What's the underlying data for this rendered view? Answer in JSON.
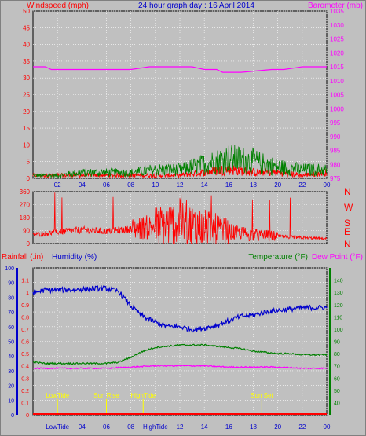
{
  "header": {
    "left_label": "Windspeed (mph)",
    "title": "24 hour graph day : 16 April 2014",
    "right_label": "Barometer (mb)"
  },
  "colors": {
    "bg": "#c0c0c0",
    "plot_bg": "#c0c0c0",
    "wind": "#ff0000",
    "gust": "#008000",
    "baro": "#ff00ff",
    "dir": "#ff0000",
    "rain": "#ff0000",
    "humidity": "#0000cc",
    "temp": "#008000",
    "dew": "#ff00ff",
    "annot": "#ffff00",
    "grid": "#ffffff"
  },
  "panel2": {
    "compass": [
      "N",
      "W",
      "S",
      "E",
      "N"
    ]
  },
  "panel3": {
    "rain_label": "Rainfall (.in)",
    "humidity_label": "Humidity (%)",
    "temp_label": "Temperature (°F)",
    "dew_label": "Dew Point (°F)"
  },
  "chart_data": [
    {
      "type": "line",
      "id": "wind-baro",
      "x_ticks": [
        "02",
        "04",
        "06",
        "08",
        "10",
        "12",
        "14",
        "16",
        "18",
        "20",
        "22",
        "00"
      ],
      "y_left": {
        "label": "Windspeed (mph)",
        "lim": [
          0,
          50
        ],
        "ticks": [
          0,
          5,
          10,
          15,
          20,
          25,
          30,
          35,
          40,
          45,
          50
        ]
      },
      "y_right": {
        "label": "Barometer (mb)",
        "lim": [
          975,
          1035
        ],
        "ticks": [
          975,
          980,
          985,
          990,
          995,
          1000,
          1005,
          1010,
          1015,
          1020,
          1025,
          1030,
          1035
        ]
      },
      "series": [
        {
          "name": "Windspeed",
          "axis": "left",
          "x_hours": [
            0,
            2,
            4,
            6,
            8,
            10,
            12,
            14,
            16,
            18,
            20,
            22,
            24
          ],
          "values": [
            1,
            1,
            1,
            1,
            1,
            1,
            1,
            2,
            3,
            2,
            2,
            1,
            2
          ]
        },
        {
          "name": "Gust",
          "axis": "left",
          "x_hours": [
            0,
            2,
            4,
            6,
            8,
            10,
            12,
            14,
            16,
            18,
            20,
            22,
            24
          ],
          "values": [
            1,
            1,
            2,
            2,
            2,
            3,
            3,
            5,
            7,
            6,
            4,
            3,
            3
          ]
        },
        {
          "name": "Barometer",
          "axis": "right",
          "x_hours": [
            0,
            1,
            1.5,
            8,
            9.5,
            13,
            14,
            15,
            15.5,
            17,
            19.5,
            20.5,
            22,
            23,
            24
          ],
          "values": [
            1015,
            1015,
            1014,
            1014,
            1015,
            1015,
            1014,
            1014,
            1013,
            1013,
            1014,
            1014,
            1015,
            1015,
            1015
          ]
        }
      ]
    },
    {
      "type": "line",
      "id": "wind-direction",
      "y_left": {
        "lim": [
          0,
          360
        ],
        "ticks": [
          0,
          90,
          180,
          270,
          360
        ]
      },
      "series": [
        {
          "name": "Wind direction",
          "x_hours": [
            0,
            2,
            4,
            6,
            8,
            10,
            12,
            14,
            16,
            18,
            20,
            22,
            24
          ],
          "values": [
            60,
            80,
            95,
            85,
            100,
            120,
            140,
            110,
            80,
            60,
            50,
            40,
            35
          ]
        }
      ]
    },
    {
      "type": "line",
      "id": "rain-hum-temp",
      "x_ticks": [
        "LowTide",
        "04",
        "06",
        "08",
        "HighTide",
        "12",
        "14",
        "16",
        "18",
        "20",
        "22",
        "00"
      ],
      "y_rain": {
        "label": "Rainfall (.in)",
        "lim": [
          0,
          1.2
        ],
        "ticks": [
          0,
          0.1,
          0.2,
          0.3,
          0.4,
          0.5,
          0.6,
          0.7,
          0.8,
          0.9,
          1,
          1.1
        ]
      },
      "y_humidity": {
        "label": "Humidity (%)",
        "lim": [
          0,
          100
        ],
        "ticks": [
          0,
          10,
          20,
          30,
          40,
          50,
          60,
          70,
          80,
          90,
          100
        ]
      },
      "y_temp": {
        "label": "Temperature (°F)",
        "lim": [
          30,
          150
        ],
        "ticks": [
          40,
          50,
          60,
          70,
          80,
          90,
          100,
          110,
          120,
          130,
          140
        ]
      },
      "annotations": [
        {
          "label": "LowTide",
          "hour": 2
        },
        {
          "label": "Sun Rise",
          "hour": 6
        },
        {
          "label": "HighTide",
          "hour": 9
        },
        {
          "label": "Sun Set",
          "hour": 18.7
        }
      ],
      "series": [
        {
          "name": "Rainfall",
          "axis": "rain",
          "x_hours": [
            0,
            24
          ],
          "values": [
            0,
            0
          ]
        },
        {
          "name": "Humidity",
          "axis": "humidity",
          "x_hours": [
            0,
            1,
            3,
            5,
            6,
            7,
            8,
            9,
            10,
            11,
            12,
            13,
            14,
            15,
            16,
            17,
            18,
            19,
            20,
            21,
            22,
            23,
            24
          ],
          "values": [
            83,
            85,
            85,
            86,
            86,
            84,
            74,
            67,
            63,
            60,
            60,
            58,
            59,
            61,
            64,
            67,
            68,
            70,
            71,
            72,
            73,
            73,
            73
          ]
        },
        {
          "name": "Temperature",
          "axis": "temp",
          "x_hours": [
            0,
            1,
            2,
            4,
            6,
            7,
            8,
            9,
            10,
            11,
            12,
            13,
            14,
            15,
            16,
            17,
            18,
            19,
            20,
            21,
            22,
            23,
            24
          ],
          "values": [
            73,
            72,
            72,
            72,
            72,
            73,
            77,
            82,
            85,
            86,
            87,
            87,
            87,
            86,
            85,
            84,
            82,
            81,
            80,
            80,
            79,
            79,
            79
          ]
        },
        {
          "name": "Dew Point",
          "axis": "temp",
          "x_hours": [
            0,
            2,
            4,
            6,
            8,
            10,
            12,
            14,
            16,
            18,
            20,
            22,
            24
          ],
          "values": [
            68,
            68,
            68,
            68,
            69,
            70,
            70,
            70,
            69,
            69,
            69,
            68,
            68
          ]
        }
      ]
    }
  ]
}
